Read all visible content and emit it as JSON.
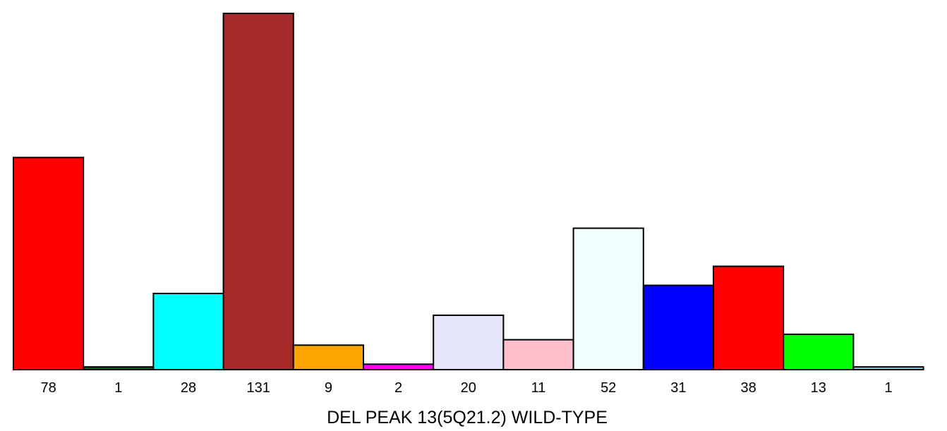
{
  "chart_data": {
    "type": "bar",
    "title": "",
    "xlabel": "DEL PEAK 13(5Q21.2) WILD-TYPE",
    "ylabel": "",
    "categories": [
      "78",
      "1",
      "28",
      "131",
      "9",
      "2",
      "20",
      "11",
      "52",
      "31",
      "38",
      "13",
      "1"
    ],
    "values": [
      78,
      1,
      28,
      131,
      9,
      2,
      20,
      11,
      52,
      31,
      38,
      13,
      1
    ],
    "colors": [
      "#ff0000",
      "#006400",
      "#00ffff",
      "#a52a2a",
      "#ffa500",
      "#ff00ff",
      "#e6e6fa",
      "#ffc0cb",
      "#f0ffff",
      "#0000ff",
      "#ff0000",
      "#00ff00",
      "#87ceeb"
    ],
    "ylim": [
      0,
      131
    ],
    "grid": false,
    "legend": "none"
  }
}
